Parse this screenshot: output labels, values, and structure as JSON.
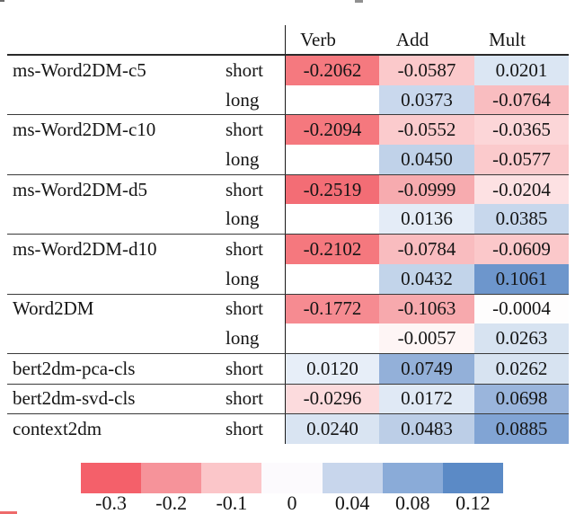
{
  "chart_data": {
    "type": "heatmap",
    "title": "",
    "columns": [
      "Verb",
      "Add",
      "Mult"
    ],
    "rows": [
      {
        "model": "ms-Word2DM-c5",
        "variant": "short",
        "group_start": false,
        "cells": [
          {
            "value": "-0.2062",
            "color": "#f5797f"
          },
          {
            "value": "-0.0587",
            "color": "#fbc9cb"
          },
          {
            "value": "0.0201",
            "color": "#dbe6f3"
          }
        ]
      },
      {
        "model": "",
        "variant": "long",
        "group_start": false,
        "cells": [
          {
            "value": "",
            "color": null
          },
          {
            "value": "0.0373",
            "color": "#c9d8ed"
          },
          {
            "value": "-0.0764",
            "color": "#f9bdc0"
          }
        ]
      },
      {
        "model": "ms-Word2DM-c10",
        "variant": "short",
        "group_start": true,
        "cells": [
          {
            "value": "-0.2094",
            "color": "#f5787e"
          },
          {
            "value": "-0.0552",
            "color": "#fbcbcd"
          },
          {
            "value": "-0.0365",
            "color": "#fcd6d8"
          }
        ]
      },
      {
        "model": "",
        "variant": "long",
        "group_start": false,
        "cells": [
          {
            "value": "",
            "color": null
          },
          {
            "value": "0.0450",
            "color": "#c0d2e9"
          },
          {
            "value": "-0.0577",
            "color": "#fbcacc"
          }
        ]
      },
      {
        "model": "ms-Word2DM-d5",
        "variant": "short",
        "group_start": true,
        "cells": [
          {
            "value": "-0.2519",
            "color": "#f36d75"
          },
          {
            "value": "-0.0999",
            "color": "#f7abaf"
          },
          {
            "value": "-0.0204",
            "color": "#fde1e3"
          }
        ]
      },
      {
        "model": "",
        "variant": "long",
        "group_start": false,
        "cells": [
          {
            "value": "",
            "color": null
          },
          {
            "value": "0.0136",
            "color": "#e4ecf7"
          },
          {
            "value": "0.0385",
            "color": "#c7d7ec"
          }
        ]
      },
      {
        "model": "ms-Word2DM-d10",
        "variant": "short",
        "group_start": true,
        "cells": [
          {
            "value": "-0.2102",
            "color": "#f5787e"
          },
          {
            "value": "-0.0784",
            "color": "#f9bcbf"
          },
          {
            "value": "-0.0609",
            "color": "#fbc8ca"
          }
        ]
      },
      {
        "model": "",
        "variant": "long",
        "group_start": false,
        "cells": [
          {
            "value": "",
            "color": null
          },
          {
            "value": "0.0432",
            "color": "#c2d4ea"
          },
          {
            "value": "0.1061",
            "color": "#6d96cc"
          }
        ]
      },
      {
        "model": "Word2DM",
        "variant": "short",
        "group_start": true,
        "cells": [
          {
            "value": "-0.1772",
            "color": "#f68b91"
          },
          {
            "value": "-0.1063",
            "color": "#f7a9ad"
          },
          {
            "value": "-0.0004",
            "color": "#fefdfd"
          }
        ]
      },
      {
        "model": "",
        "variant": "long",
        "group_start": false,
        "cells": [
          {
            "value": "",
            "color": null
          },
          {
            "value": "-0.0057",
            "color": "#fef5f5"
          },
          {
            "value": "0.0263",
            "color": "#d7e3f1"
          }
        ]
      },
      {
        "model": "bert2dm-pca-cls",
        "variant": "short",
        "group_start": true,
        "cells": [
          {
            "value": "0.0120",
            "color": "#e7eef8"
          },
          {
            "value": "0.0749",
            "color": "#93b0d9"
          },
          {
            "value": "0.0262",
            "color": "#d7e3f1"
          }
        ]
      },
      {
        "model": "bert2dm-svd-cls",
        "variant": "short",
        "group_start": true,
        "cells": [
          {
            "value": "-0.0296",
            "color": "#fcdbdd"
          },
          {
            "value": "0.0172",
            "color": "#e0e9f5"
          },
          {
            "value": "0.0698",
            "color": "#9ab5dc"
          }
        ]
      },
      {
        "model": "context2dm",
        "variant": "short",
        "group_start": true,
        "cells": [
          {
            "value": "0.0240",
            "color": "#d9e4f2"
          },
          {
            "value": "0.0483",
            "color": "#bccee7"
          },
          {
            "value": "0.0885",
            "color": "#81a4d4"
          }
        ]
      }
    ],
    "legend": {
      "position": "bottom",
      "segments": [
        {
          "label": "-0.3",
          "color": "#f4606a"
        },
        {
          "label": "-0.2",
          "color": "#f6939a"
        },
        {
          "label": "-0.1",
          "color": "#fbc6c9"
        },
        {
          "label": "0",
          "color": "#fcfafd"
        },
        {
          "label": "0.04",
          "color": "#c8d6ec"
        },
        {
          "label": "0.08",
          "color": "#8aabd8"
        },
        {
          "label": "0.12",
          "color": "#5b8ac6"
        }
      ]
    }
  }
}
